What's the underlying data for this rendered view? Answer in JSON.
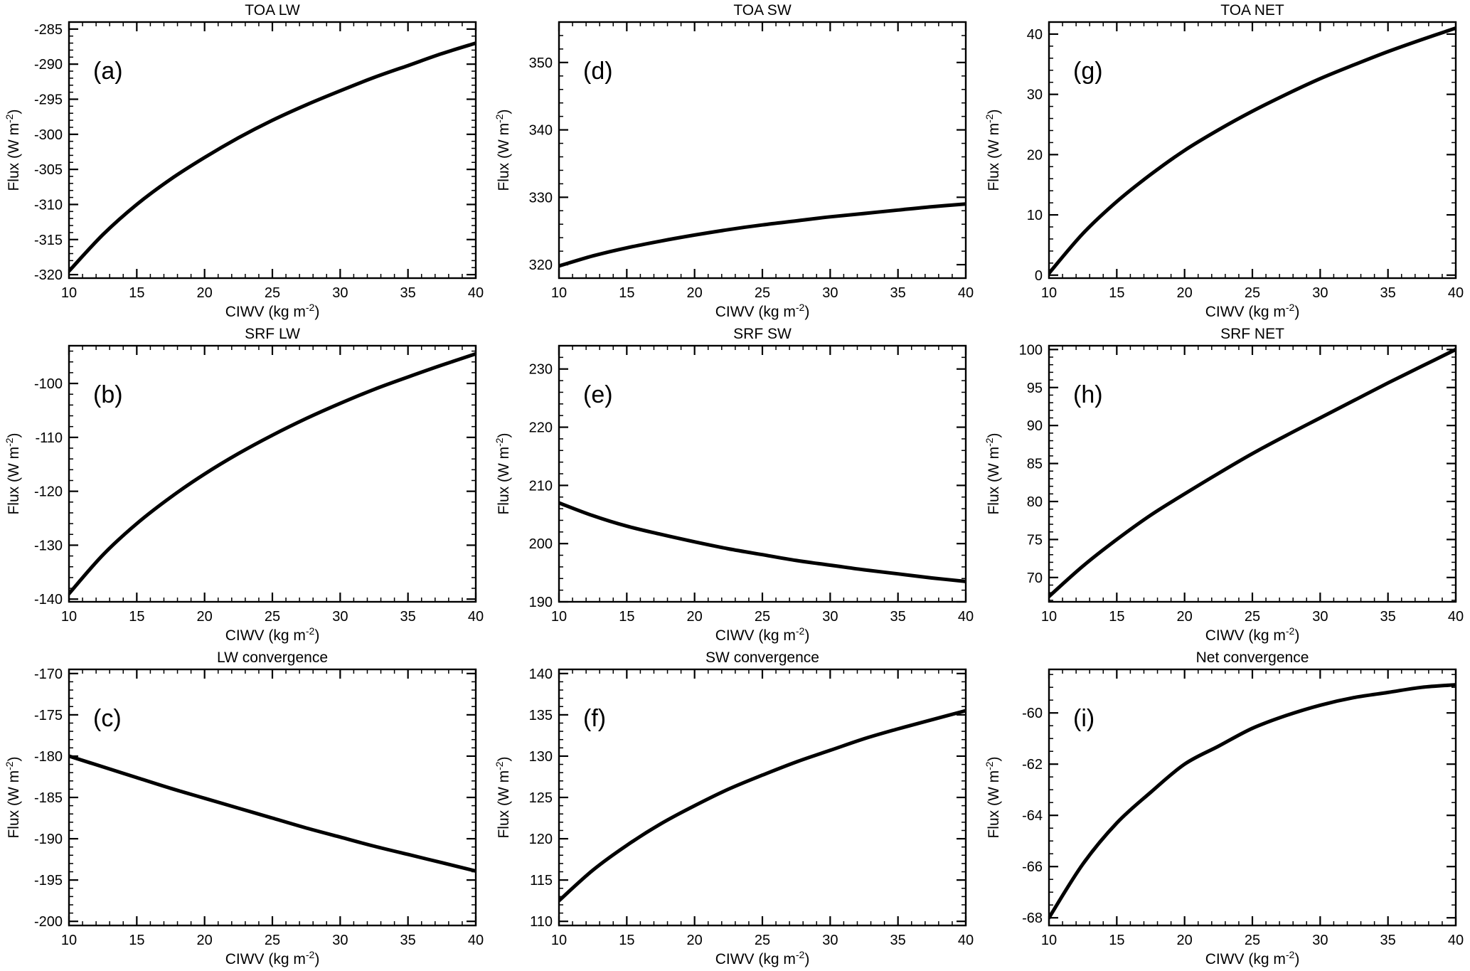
{
  "figure": {
    "background": "#ffffff",
    "line_color": "#000000",
    "layout": "3x3 grid of line plots, row-major order: a d g / b e h / c f i"
  },
  "chart_data": [
    {
      "id": "a",
      "type": "line",
      "title": "TOA LW",
      "panel_label": "(a)",
      "xlabel": "CIWV (kg m^-2)",
      "ylabel": "Flux (W m^-2)",
      "xlim": [
        10,
        40
      ],
      "ylim": [
        -320.5,
        -284
      ],
      "xticks": [
        10,
        15,
        20,
        25,
        30,
        35,
        40
      ],
      "yticks": [
        -320,
        -315,
        -310,
        -305,
        -300,
        -295,
        -290,
        -285
      ],
      "xminor": 1,
      "yminor": 1,
      "x": [
        10,
        12.5,
        15,
        17.5,
        20,
        22.5,
        25,
        27.5,
        30,
        32.5,
        35,
        37.5,
        40
      ],
      "y": [
        -319.5,
        -314.3,
        -310.0,
        -306.4,
        -303.3,
        -300.5,
        -298.0,
        -295.8,
        -293.8,
        -291.9,
        -290.2,
        -288.5,
        -287.0
      ]
    },
    {
      "id": "d",
      "type": "line",
      "title": "TOA SW",
      "panel_label": "(d)",
      "xlabel": "CIWV (kg m^-2)",
      "ylabel": "Flux (W m^-2)",
      "xlim": [
        10,
        40
      ],
      "ylim": [
        318,
        356
      ],
      "xticks": [
        10,
        15,
        20,
        25,
        30,
        35,
        40
      ],
      "yticks": [
        320,
        330,
        340,
        350
      ],
      "xminor": 1,
      "yminor": 2,
      "x": [
        10,
        12.5,
        15,
        17.5,
        20,
        22.5,
        25,
        27.5,
        30,
        32.5,
        35,
        37.5,
        40
      ],
      "y": [
        319.8,
        321.3,
        322.5,
        323.5,
        324.4,
        325.2,
        325.9,
        326.5,
        327.1,
        327.6,
        328.1,
        328.6,
        329.0
      ]
    },
    {
      "id": "g",
      "type": "line",
      "title": "TOA NET",
      "panel_label": "(g)",
      "xlabel": "CIWV (kg m^-2)",
      "ylabel": "Flux (W m^-2)",
      "xlim": [
        10,
        40
      ],
      "ylim": [
        -0.5,
        42
      ],
      "xticks": [
        10,
        15,
        20,
        25,
        30,
        35,
        40
      ],
      "yticks": [
        0,
        10,
        20,
        30,
        40
      ],
      "xminor": 1,
      "yminor": 2,
      "x": [
        10,
        12.5,
        15,
        17.5,
        20,
        22.5,
        25,
        27.5,
        30,
        32.5,
        35,
        37.5,
        40
      ],
      "y": [
        0.3,
        6.9,
        12.2,
        16.7,
        20.7,
        24.1,
        27.2,
        30.0,
        32.6,
        34.9,
        37.1,
        39.1,
        41.0
      ]
    },
    {
      "id": "b",
      "type": "line",
      "title": "SRF LW",
      "panel_label": "(b)",
      "xlabel": "CIWV (kg m^-2)",
      "ylabel": "Flux (W m^-2)",
      "xlim": [
        10,
        40
      ],
      "ylim": [
        -140.5,
        -93
      ],
      "xticks": [
        10,
        15,
        20,
        25,
        30,
        35,
        40
      ],
      "yticks": [
        -140,
        -130,
        -120,
        -110,
        -100
      ],
      "xminor": 1,
      "yminor": 2,
      "x": [
        10,
        12.5,
        15,
        17.5,
        20,
        22.5,
        25,
        27.5,
        30,
        32.5,
        35,
        37.5,
        40
      ],
      "y": [
        -139.0,
        -131.8,
        -126.0,
        -121.1,
        -116.8,
        -113.0,
        -109.6,
        -106.5,
        -103.7,
        -101.1,
        -98.8,
        -96.6,
        -94.5
      ]
    },
    {
      "id": "e",
      "type": "line",
      "title": "SRF SW",
      "panel_label": "(e)",
      "xlabel": "CIWV (kg m^-2)",
      "ylabel": "Flux (W m^-2)",
      "xlim": [
        10,
        40
      ],
      "ylim": [
        190,
        234
      ],
      "xticks": [
        10,
        15,
        20,
        25,
        30,
        35,
        40
      ],
      "yticks": [
        190,
        200,
        210,
        220,
        230
      ],
      "xminor": 1,
      "yminor": 2,
      "x": [
        10,
        12.5,
        15,
        17.5,
        20,
        22.5,
        25,
        27.5,
        30,
        32.5,
        35,
        37.5,
        40
      ],
      "y": [
        207.0,
        204.8,
        203.0,
        201.6,
        200.3,
        199.1,
        198.1,
        197.1,
        196.3,
        195.5,
        194.8,
        194.1,
        193.5
      ]
    },
    {
      "id": "h",
      "type": "line",
      "title": "SRF NET",
      "panel_label": "(h)",
      "xlabel": "CIWV (kg m^-2)",
      "ylabel": "Flux (W m^-2)",
      "xlim": [
        10,
        40
      ],
      "ylim": [
        66.8,
        100.5
      ],
      "xticks": [
        10,
        15,
        20,
        25,
        30,
        35,
        40
      ],
      "yticks": [
        70,
        75,
        80,
        85,
        90,
        95,
        100
      ],
      "xminor": 1,
      "yminor": 1,
      "x": [
        10,
        12.5,
        15,
        17.5,
        20,
        22.5,
        25,
        27.5,
        30,
        32.5,
        35,
        37.5,
        40
      ],
      "y": [
        67.5,
        71.5,
        75.0,
        78.2,
        81.0,
        83.7,
        86.3,
        88.7,
        91.0,
        93.3,
        95.6,
        97.8,
        100.0
      ]
    },
    {
      "id": "c",
      "type": "line",
      "title": "LW convergence",
      "panel_label": "(c)",
      "xlabel": "CIWV (kg m^-2)",
      "ylabel": "Flux (W m^-2)",
      "xlim": [
        10,
        40
      ],
      "ylim": [
        -200.5,
        -169.5
      ],
      "xticks": [
        10,
        15,
        20,
        25,
        30,
        35,
        40
      ],
      "yticks": [
        -200,
        -195,
        -190,
        -185,
        -180,
        -175,
        -170
      ],
      "xminor": 1,
      "yminor": 1,
      "x": [
        10,
        12.5,
        15,
        17.5,
        20,
        22.5,
        25,
        27.5,
        30,
        32.5,
        35,
        37.5,
        40
      ],
      "y": [
        -180.0,
        -181.3,
        -182.6,
        -183.9,
        -185.1,
        -186.3,
        -187.5,
        -188.7,
        -189.8,
        -190.9,
        -191.9,
        -192.9,
        -193.9
      ]
    },
    {
      "id": "f",
      "type": "line",
      "title": "SW convergence",
      "panel_label": "(f)",
      "xlabel": "CIWV (kg m^-2)",
      "ylabel": "Flux (W m^-2)",
      "xlim": [
        10,
        40
      ],
      "ylim": [
        109.5,
        140.5
      ],
      "xticks": [
        10,
        15,
        20,
        25,
        30,
        35,
        40
      ],
      "yticks": [
        110,
        115,
        120,
        125,
        130,
        135,
        140
      ],
      "xminor": 1,
      "yminor": 1,
      "x": [
        10,
        12.5,
        15,
        17.5,
        20,
        22.5,
        25,
        27.5,
        30,
        32.5,
        35,
        37.5,
        40
      ],
      "y": [
        112.5,
        116.2,
        119.2,
        121.8,
        124.0,
        126.0,
        127.7,
        129.3,
        130.7,
        132.1,
        133.3,
        134.4,
        135.5
      ]
    },
    {
      "id": "i",
      "type": "line",
      "title": "Net convergence",
      "panel_label": "(i)",
      "xlabel": "CIWV (kg m^-2)",
      "ylabel": "Flux (W m^-2)",
      "xlim": [
        10,
        40
      ],
      "ylim": [
        -68.3,
        -58.3
      ],
      "xticks": [
        10,
        15,
        20,
        25,
        30,
        35,
        40
      ],
      "yticks": [
        -68,
        -66,
        -64,
        -62,
        -60
      ],
      "xminor": 1,
      "yminor": 0.5,
      "x": [
        10,
        12.5,
        15,
        17.5,
        20,
        22.5,
        25,
        27.5,
        30,
        32.5,
        35,
        37.5,
        40
      ],
      "y": [
        -68.0,
        -65.9,
        -64.3,
        -63.1,
        -62.0,
        -61.3,
        -60.6,
        -60.1,
        -59.7,
        -59.4,
        -59.2,
        -59.0,
        -58.9
      ]
    }
  ]
}
